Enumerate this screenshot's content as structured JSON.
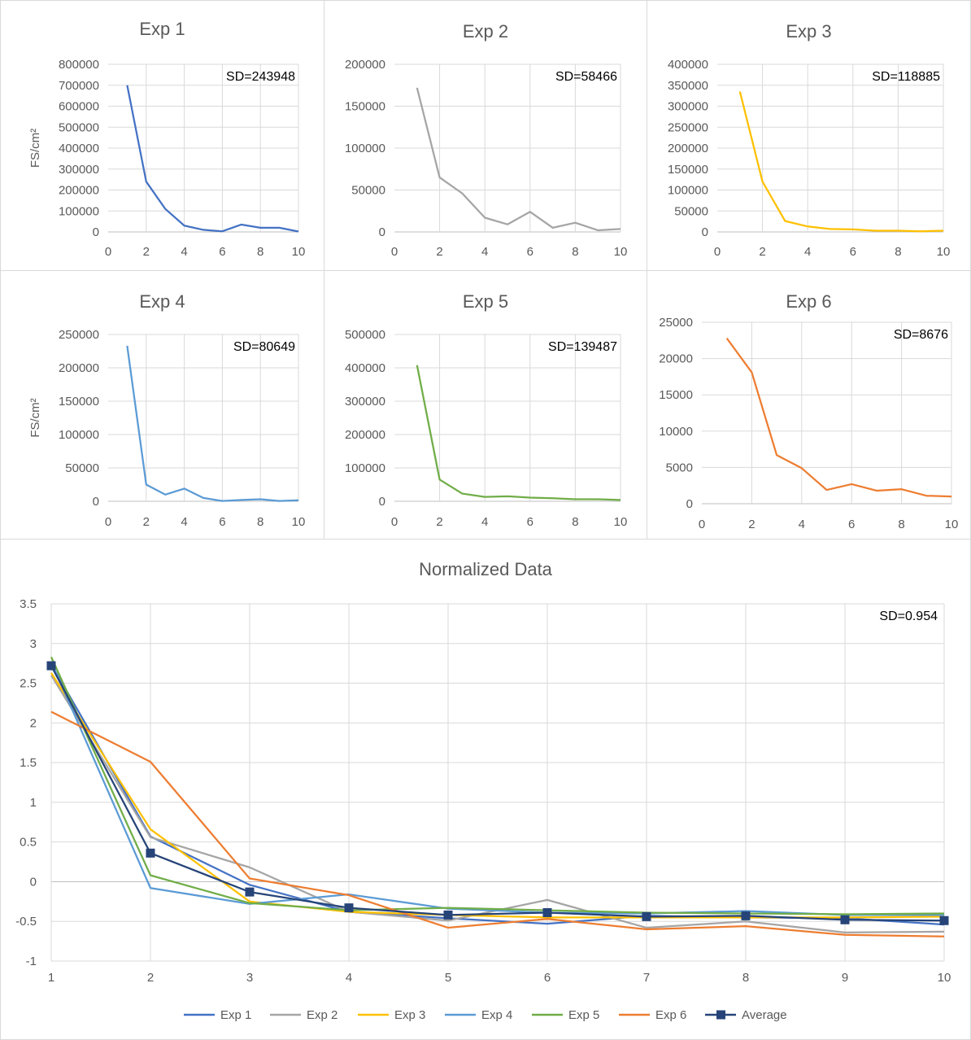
{
  "colors": {
    "Exp 1": "#4472c4",
    "Exp 2": "#a5a5a5",
    "Exp 3": "#ffc000",
    "Exp 4": "#5b9bd5",
    "Exp 5": "#70ad47",
    "Exp 6": "#ed7d31",
    "Average": "#264478",
    "grid": "#d9d9d9",
    "axis": "#bfbfbf"
  },
  "chart_data": [
    {
      "type": "line",
      "title": "Exp 1",
      "ylabel": "FS/cm²",
      "annotation": "SD=243948",
      "x": [
        1,
        2,
        3,
        4,
        5,
        6,
        7,
        8,
        9,
        10
      ],
      "values": [
        700000,
        240000,
        110000,
        30000,
        10000,
        3000,
        35000,
        20000,
        20000,
        2000
      ],
      "xlim": [
        0,
        10
      ],
      "ylim": [
        0,
        800000
      ],
      "xticks": [
        0,
        2,
        4,
        6,
        8,
        10
      ],
      "yticks": [
        0,
        100000,
        200000,
        300000,
        400000,
        500000,
        600000,
        700000,
        800000
      ]
    },
    {
      "type": "line",
      "title": "Exp 2",
      "ylabel": "",
      "annotation": "SD=58466",
      "x": [
        1,
        2,
        3,
        4,
        5,
        6,
        7,
        8,
        9,
        10
      ],
      "values": [
        172000,
        65000,
        46000,
        17000,
        9000,
        24000,
        5000,
        11000,
        2000,
        3500
      ],
      "xlim": [
        0,
        10
      ],
      "ylim": [
        0,
        200000
      ],
      "xticks": [
        0,
        2,
        4,
        6,
        8,
        10
      ],
      "yticks": [
        0,
        50000,
        100000,
        150000,
        200000
      ]
    },
    {
      "type": "line",
      "title": "Exp 3",
      "ylabel": "",
      "annotation": "SD=118885",
      "x": [
        1,
        2,
        3,
        4,
        5,
        6,
        7,
        8,
        9,
        10
      ],
      "values": [
        335000,
        120000,
        26000,
        13000,
        7000,
        6000,
        3000,
        3000,
        1500,
        3000
      ],
      "xlim": [
        0,
        10
      ],
      "ylim": [
        0,
        400000
      ],
      "xticks": [
        0,
        2,
        4,
        6,
        8,
        10
      ],
      "yticks": [
        0,
        50000,
        100000,
        150000,
        200000,
        250000,
        300000,
        350000,
        400000
      ]
    },
    {
      "type": "line",
      "title": "Exp 4",
      "ylabel": "FS/cm²",
      "annotation": "SD=80649",
      "x": [
        1,
        2,
        3,
        4,
        5,
        6,
        7,
        8,
        9,
        10
      ],
      "values": [
        233000,
        25000,
        10000,
        19000,
        5000,
        500,
        2000,
        3000,
        500,
        1500
      ],
      "xlim": [
        0,
        10
      ],
      "ylim": [
        0,
        250000
      ],
      "xticks": [
        0,
        2,
        4,
        6,
        8,
        10
      ],
      "yticks": [
        0,
        50000,
        100000,
        150000,
        200000,
        250000
      ]
    },
    {
      "type": "line",
      "title": "Exp 5",
      "ylabel": "",
      "annotation": "SD=139487",
      "x": [
        1,
        2,
        3,
        4,
        5,
        6,
        7,
        8,
        9,
        10
      ],
      "values": [
        408000,
        65000,
        23000,
        13000,
        15000,
        11000,
        9000,
        6000,
        6000,
        4000
      ],
      "xlim": [
        0,
        10
      ],
      "ylim": [
        0,
        500000
      ],
      "xticks": [
        0,
        2,
        4,
        6,
        8,
        10
      ],
      "yticks": [
        0,
        100000,
        200000,
        300000,
        400000,
        500000
      ]
    },
    {
      "type": "line",
      "title": "Exp 6",
      "ylabel": "",
      "annotation": "SD=8676",
      "x": [
        1,
        2,
        3,
        4,
        5,
        6,
        7,
        8,
        9,
        10
      ],
      "values": [
        22800,
        18100,
        6700,
        4900,
        1900,
        2700,
        1800,
        2000,
        1100,
        1000
      ],
      "xlim": [
        0,
        10
      ],
      "ylim": [
        0,
        25000
      ],
      "xticks": [
        0,
        2,
        4,
        6,
        8,
        10
      ],
      "yticks": [
        0,
        5000,
        10000,
        15000,
        20000,
        25000
      ]
    },
    {
      "type": "line",
      "title": "Normalized Data",
      "annotation": "SD=0.954",
      "categories": [
        "1",
        "2",
        "3",
        "4",
        "5",
        "6",
        "7",
        "8",
        "9",
        "10"
      ],
      "ylim": [
        -1,
        3.5
      ],
      "yticks": [
        "-1",
        "-0.5",
        "0",
        "0.5",
        "1",
        "1.5",
        "2",
        "2.5",
        "3",
        "3.5"
      ],
      "series": [
        {
          "name": "Exp 1",
          "values": [
            2.74,
            0.57,
            -0.04,
            -0.38,
            -0.46,
            -0.53,
            -0.43,
            -0.45,
            -0.46,
            -0.54
          ]
        },
        {
          "name": "Exp 2",
          "values": [
            2.6,
            0.56,
            0.18,
            -0.38,
            -0.49,
            -0.23,
            -0.58,
            -0.5,
            -0.64,
            -0.63
          ]
        },
        {
          "name": "Exp 3",
          "values": [
            2.63,
            0.66,
            -0.25,
            -0.38,
            -0.42,
            -0.45,
            -0.45,
            -0.45,
            -0.45,
            -0.44
          ]
        },
        {
          "name": "Exp 4",
          "values": [
            2.77,
            -0.08,
            -0.28,
            -0.16,
            -0.34,
            -0.39,
            -0.4,
            -0.37,
            -0.42,
            -0.42
          ]
        },
        {
          "name": "Exp 5",
          "values": [
            2.83,
            0.08,
            -0.27,
            -0.36,
            -0.33,
            -0.36,
            -0.39,
            -0.4,
            -0.41,
            -0.4
          ]
        },
        {
          "name": "Exp 6",
          "values": [
            2.14,
            1.51,
            0.04,
            -0.17,
            -0.58,
            -0.47,
            -0.6,
            -0.56,
            -0.67,
            -0.69
          ]
        },
        {
          "name": "Average",
          "values": [
            2.72,
            0.36,
            -0.13,
            -0.33,
            -0.42,
            -0.39,
            -0.44,
            -0.43,
            -0.48,
            -0.49
          ],
          "marker": "square"
        }
      ]
    }
  ]
}
